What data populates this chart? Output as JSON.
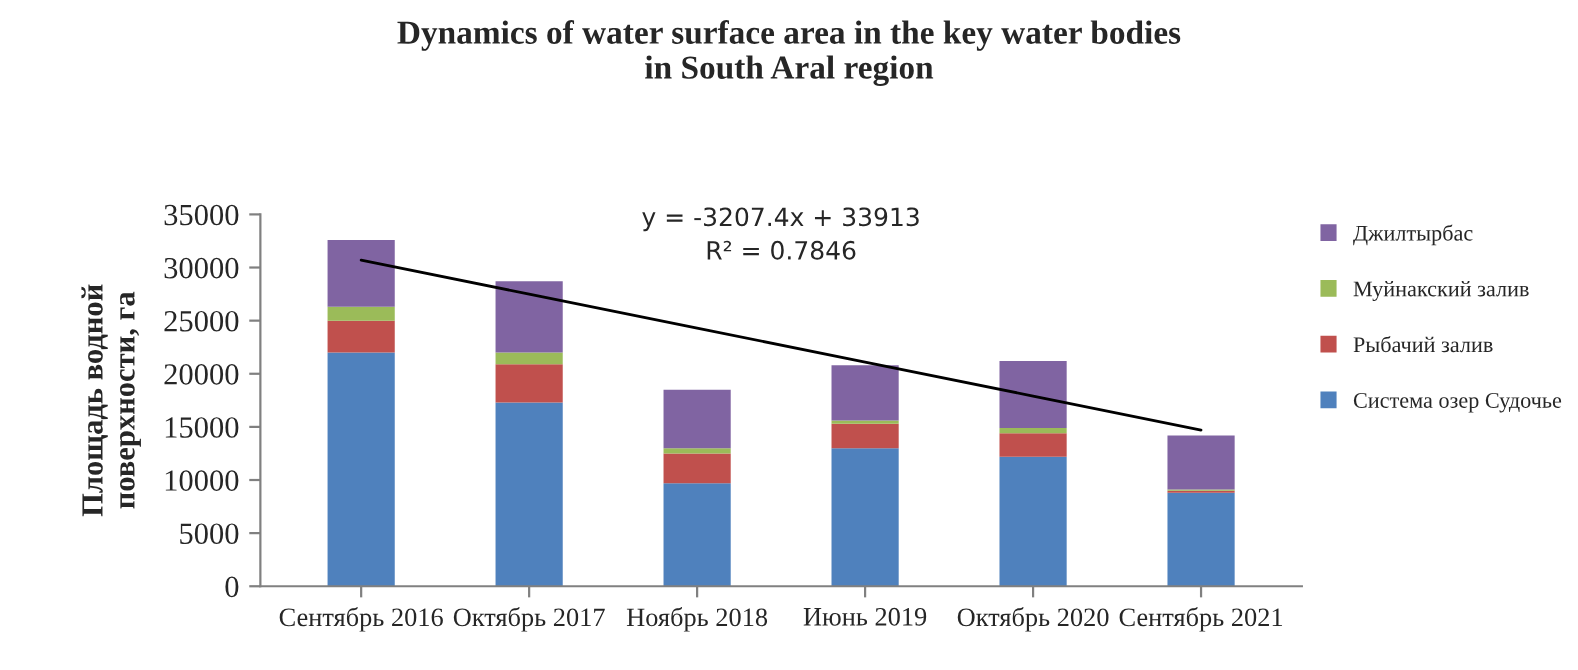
{
  "chart_data": {
    "type": "bar",
    "stacked": true,
    "title": "Dynamics of water surface area in the key water bodies\nin South Aral region",
    "ylabel": "Площадь водной\nповерхности, га",
    "categories": [
      "Сентябрь 2016",
      "Октябрь 2017",
      "Ноябрь 2018",
      "Июнь 2019",
      "Октябрь 2020",
      "Сентябрь 2021"
    ],
    "series": [
      {
        "name": "Система озер Судочье",
        "color": "#4f81bd",
        "values": [
          22000,
          17300,
          9700,
          13000,
          12200,
          8800
        ]
      },
      {
        "name": "Рыбачий залив",
        "color": "#c0504d",
        "values": [
          3000,
          3600,
          2800,
          2300,
          2200,
          200
        ]
      },
      {
        "name": "Муйнакский залив",
        "color": "#9bbb59",
        "values": [
          1300,
          1100,
          500,
          300,
          500,
          100
        ]
      },
      {
        "name": "Джилтырбас",
        "color": "#8064a2",
        "values": [
          6300,
          6700,
          5500,
          5200,
          6300,
          5100
        ]
      },
      {
        "type": "line",
        "color": "#000000",
        "x": [
          "Сентябрь 2016",
          "Октябрь 2017",
          "Ноябрь 2018",
          "Июнь 2019",
          "Октябрь 2020",
          "Сентябрь 2021"
        ],
        "values": [
          30700,
          27500,
          24300,
          21100,
          17900,
          14700
        ]
      }
    ],
    "annotations": [
      "y = -3207.4x + 33913",
      "R² = 0.7846"
    ],
    "ylim": [
      0,
      35000
    ],
    "yticks": [
      0,
      5000,
      10000,
      15000,
      20000,
      25000,
      30000,
      35000
    ],
    "grid": false,
    "legend": "right"
  }
}
